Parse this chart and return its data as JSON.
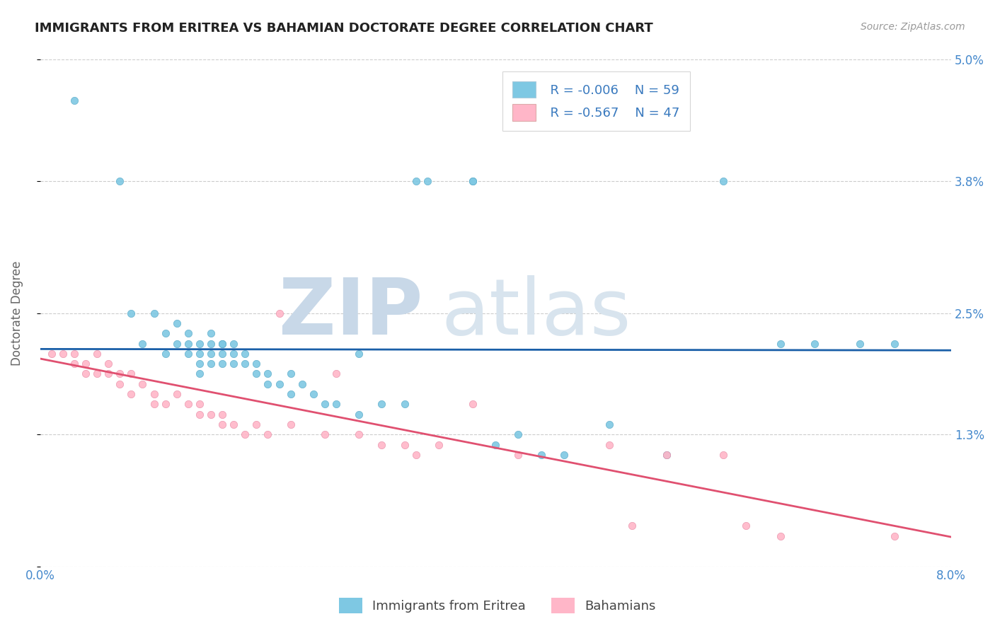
{
  "title": "IMMIGRANTS FROM ERITREA VS BAHAMIAN DOCTORATE DEGREE CORRELATION CHART",
  "source": "Source: ZipAtlas.com",
  "ylabel": "Doctorate Degree",
  "legend_label1": "Immigrants from Eritrea",
  "legend_label2": "Bahamians",
  "legend_r1": "R = -0.006",
  "legend_n1": "N = 59",
  "legend_r2": "R = -0.567",
  "legend_n2": "N = 47",
  "color_blue": "#7ec8e3",
  "color_pink": "#ffb6c8",
  "line_blue": "#1a5fa8",
  "line_pink": "#e05070",
  "xlim": [
    0.0,
    0.08
  ],
  "ylim": [
    0.0,
    0.05
  ],
  "y_tick_vals": [
    0.0,
    0.013,
    0.025,
    0.038,
    0.05
  ],
  "y_tick_labels": [
    "",
    "1.3%",
    "2.5%",
    "3.8%",
    "5.0%"
  ],
  "x_tick_vals": [
    0.0,
    0.08
  ],
  "x_tick_labels": [
    "0.0%",
    "8.0%"
  ],
  "blue_x": [
    0.003,
    0.007,
    0.008,
    0.009,
    0.01,
    0.011,
    0.011,
    0.012,
    0.012,
    0.013,
    0.013,
    0.013,
    0.014,
    0.014,
    0.014,
    0.014,
    0.015,
    0.015,
    0.015,
    0.015,
    0.016,
    0.016,
    0.016,
    0.016,
    0.017,
    0.017,
    0.017,
    0.018,
    0.018,
    0.019,
    0.019,
    0.02,
    0.02,
    0.021,
    0.022,
    0.022,
    0.023,
    0.024,
    0.025,
    0.026,
    0.028,
    0.03,
    0.032,
    0.034,
    0.038,
    0.04,
    0.042,
    0.044,
    0.046,
    0.05,
    0.055,
    0.028,
    0.033,
    0.038,
    0.06,
    0.065,
    0.068,
    0.072,
    0.075
  ],
  "blue_y": [
    0.046,
    0.038,
    0.025,
    0.022,
    0.025,
    0.021,
    0.023,
    0.022,
    0.024,
    0.022,
    0.021,
    0.023,
    0.022,
    0.021,
    0.02,
    0.019,
    0.023,
    0.02,
    0.022,
    0.021,
    0.022,
    0.02,
    0.022,
    0.021,
    0.021,
    0.022,
    0.02,
    0.02,
    0.021,
    0.02,
    0.019,
    0.019,
    0.018,
    0.018,
    0.017,
    0.019,
    0.018,
    0.017,
    0.016,
    0.016,
    0.015,
    0.016,
    0.016,
    0.038,
    0.038,
    0.012,
    0.013,
    0.011,
    0.011,
    0.014,
    0.011,
    0.021,
    0.038,
    0.038,
    0.038,
    0.022,
    0.022,
    0.022,
    0.022
  ],
  "pink_x": [
    0.001,
    0.002,
    0.003,
    0.003,
    0.004,
    0.004,
    0.005,
    0.005,
    0.006,
    0.006,
    0.007,
    0.007,
    0.008,
    0.008,
    0.009,
    0.01,
    0.01,
    0.011,
    0.012,
    0.013,
    0.014,
    0.014,
    0.015,
    0.016,
    0.016,
    0.017,
    0.018,
    0.019,
    0.02,
    0.022,
    0.025,
    0.026,
    0.028,
    0.03,
    0.032,
    0.033,
    0.035,
    0.038,
    0.042,
    0.05,
    0.052,
    0.055,
    0.06,
    0.062,
    0.065,
    0.075,
    0.021
  ],
  "pink_y": [
    0.021,
    0.021,
    0.021,
    0.02,
    0.02,
    0.019,
    0.021,
    0.019,
    0.02,
    0.019,
    0.019,
    0.018,
    0.019,
    0.017,
    0.018,
    0.017,
    0.016,
    0.016,
    0.017,
    0.016,
    0.016,
    0.015,
    0.015,
    0.015,
    0.014,
    0.014,
    0.013,
    0.014,
    0.013,
    0.014,
    0.013,
    0.019,
    0.013,
    0.012,
    0.012,
    0.011,
    0.012,
    0.016,
    0.011,
    0.012,
    0.004,
    0.011,
    0.011,
    0.004,
    0.003,
    0.003,
    0.025
  ],
  "blue_line_y_intercept": 0.02145,
  "blue_line_slope": -0.0016,
  "pink_line_y_intercept": 0.0205,
  "pink_line_slope": -0.22
}
